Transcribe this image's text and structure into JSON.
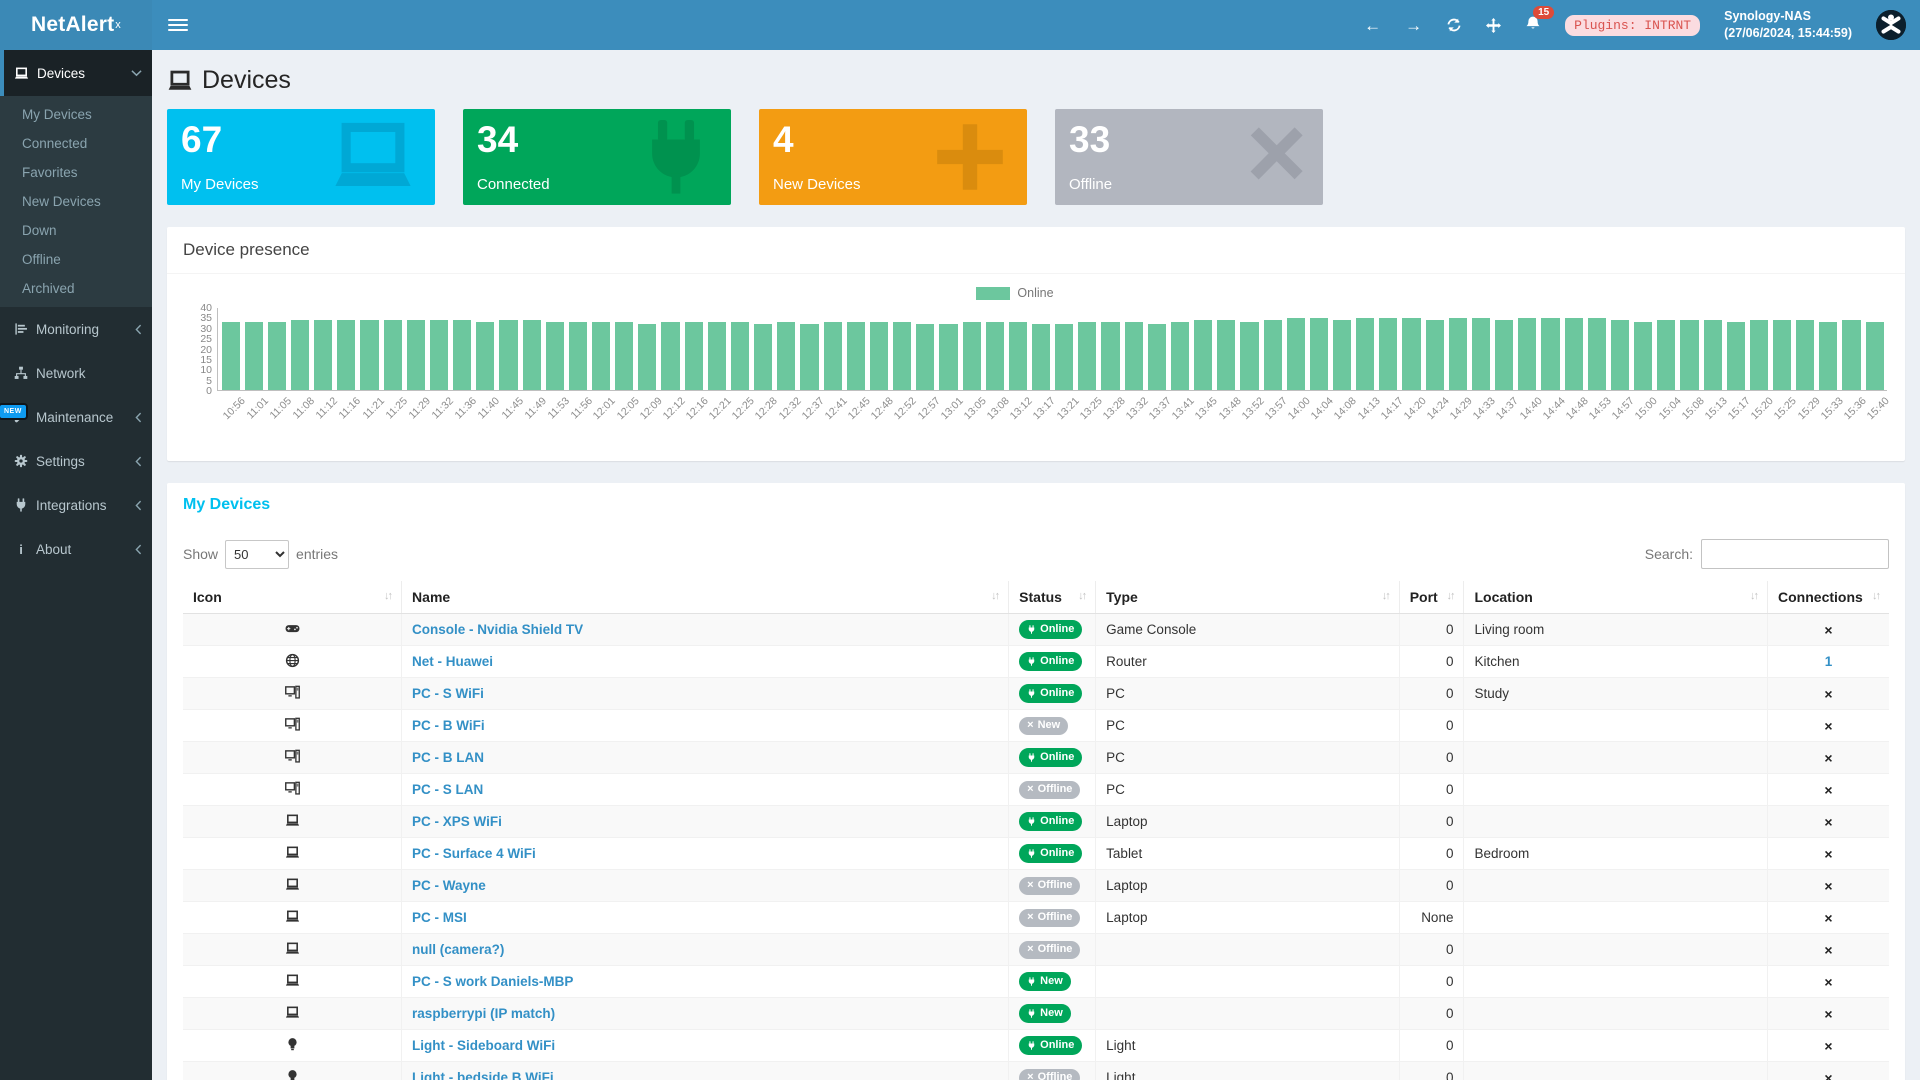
{
  "logo": {
    "text": "NetAlert",
    "sup": "x"
  },
  "navbar": {
    "notification_count": "15",
    "plugins_badge": "Plugins: INTRNT",
    "host": "Synology-NAS",
    "timestamp": "(27/06/2024, 15:44:59)"
  },
  "sidebar": {
    "devices": {
      "label": "Devices"
    },
    "devices_submenu": [
      {
        "label": "My Devices"
      },
      {
        "label": "Connected"
      },
      {
        "label": "Favorites"
      },
      {
        "label": "New Devices"
      },
      {
        "label": "Down"
      },
      {
        "label": "Offline"
      },
      {
        "label": "Archived"
      }
    ],
    "items": [
      {
        "label": "Monitoring"
      },
      {
        "label": "Network"
      },
      {
        "label": "Maintenance",
        "badge": "NEW"
      },
      {
        "label": "Settings"
      },
      {
        "label": "Integrations"
      },
      {
        "label": "About"
      }
    ]
  },
  "page": {
    "title": "Devices",
    "info_boxes": [
      {
        "value": "67",
        "label": "My Devices",
        "color": "#00c0ef",
        "icon": "laptop-icon"
      },
      {
        "value": "34",
        "label": "Connected",
        "color": "#00a65a",
        "icon": "plug-icon"
      },
      {
        "value": "4",
        "label": "New Devices",
        "color": "#f39c12",
        "icon": "plus-icon"
      },
      {
        "value": "33",
        "label": "Offline",
        "color": "#b2b6bf",
        "icon": "x-icon"
      }
    ]
  },
  "chart_data": {
    "type": "bar",
    "title": "Device presence",
    "legend": [
      "Online"
    ],
    "series_color": "#6cc79e",
    "ylim": [
      0,
      40
    ],
    "yticks": [
      40,
      35,
      30,
      25,
      20,
      15,
      10,
      5,
      0
    ],
    "x": [
      "10:56",
      "11:01",
      "11:05",
      "11:08",
      "11:12",
      "11:16",
      "11:21",
      "11:25",
      "11:29",
      "11:32",
      "11:36",
      "11:40",
      "11:45",
      "11:49",
      "11:53",
      "11:56",
      "12:01",
      "12:05",
      "12:09",
      "12:12",
      "12:16",
      "12:21",
      "12:25",
      "12:28",
      "12:32",
      "12:37",
      "12:41",
      "12:45",
      "12:48",
      "12:52",
      "12:57",
      "13:01",
      "13:05",
      "13:08",
      "13:12",
      "13:17",
      "13:21",
      "13:25",
      "13:28",
      "13:32",
      "13:37",
      "13:41",
      "13:45",
      "13:48",
      "13:52",
      "13:57",
      "14:00",
      "14:04",
      "14:08",
      "14:13",
      "14:17",
      "14:20",
      "14:24",
      "14:29",
      "14:33",
      "14:37",
      "14:40",
      "14:44",
      "14:48",
      "14:53",
      "14:57",
      "15:00",
      "15:04",
      "15:08",
      "15:13",
      "15:17",
      "15:20",
      "15:25",
      "15:29",
      "15:33",
      "15:36",
      "15:40"
    ],
    "values": [
      33,
      33,
      33,
      34,
      34,
      34,
      34,
      34,
      34,
      34,
      34,
      33,
      34,
      34,
      33,
      33,
      33,
      33,
      32,
      33,
      33,
      33,
      33,
      32,
      33,
      32,
      33,
      33,
      33,
      33,
      32,
      32,
      33,
      33,
      33,
      32,
      32,
      33,
      33,
      33,
      32,
      33,
      34,
      34,
      33,
      34,
      35,
      35,
      34,
      35,
      35,
      35,
      34,
      35,
      35,
      34,
      35,
      35,
      35,
      35,
      34,
      33,
      34,
      34,
      34,
      33,
      34,
      34,
      34,
      33,
      34,
      33
    ]
  },
  "table": {
    "title": "My Devices",
    "show_label": "Show",
    "page_length": "50",
    "entries_label": "entries",
    "search_label": "Search:",
    "headers": [
      "Icon",
      "Name",
      "Status",
      "Type",
      "Port",
      "Location",
      "Connections"
    ],
    "rows": [
      {
        "icon": "gamepad-icon",
        "name": "Console - Nvidia Shield TV",
        "status": {
          "label": "Online",
          "variant": "green",
          "icon": "plug"
        },
        "type": "Game Console",
        "port": "0",
        "location": "Living room",
        "connections": {
          "kind": "x"
        }
      },
      {
        "icon": "globe-icon",
        "name": "Net - Huawei",
        "status": {
          "label": "Online",
          "variant": "green",
          "icon": "plug"
        },
        "type": "Router",
        "port": "0",
        "location": "Kitchen",
        "connections": {
          "kind": "link",
          "value": "1"
        }
      },
      {
        "icon": "desktop-icon",
        "name": "PC - S WiFi",
        "status": {
          "label": "Online",
          "variant": "green",
          "icon": "plug"
        },
        "type": "PC",
        "port": "0",
        "location": "Study",
        "connections": {
          "kind": "x"
        }
      },
      {
        "icon": "desktop-icon",
        "name": "PC - B WiFi",
        "status": {
          "label": "New",
          "variant": "gray",
          "icon": "x"
        },
        "type": "PC",
        "port": "0",
        "location": "",
        "connections": {
          "kind": "x"
        }
      },
      {
        "icon": "desktop-icon",
        "name": "PC - B LAN",
        "status": {
          "label": "Online",
          "variant": "green",
          "icon": "plug"
        },
        "type": "PC",
        "port": "0",
        "location": "",
        "connections": {
          "kind": "x"
        }
      },
      {
        "icon": "desktop-icon",
        "name": "PC - S LAN",
        "status": {
          "label": "Offline",
          "variant": "gray",
          "icon": "x"
        },
        "type": "PC",
        "port": "0",
        "location": "",
        "connections": {
          "kind": "x"
        }
      },
      {
        "icon": "laptop-icon",
        "name": "PC - XPS WiFi",
        "status": {
          "label": "Online",
          "variant": "green",
          "icon": "plug"
        },
        "type": "Laptop",
        "port": "0",
        "location": "",
        "connections": {
          "kind": "x"
        }
      },
      {
        "icon": "laptop-icon",
        "name": "PC - Surface 4 WiFi",
        "status": {
          "label": "Online",
          "variant": "green",
          "icon": "plug"
        },
        "type": "Tablet",
        "port": "0",
        "location": "Bedroom",
        "connections": {
          "kind": "x"
        }
      },
      {
        "icon": "laptop-icon",
        "name": "PC - Wayne",
        "status": {
          "label": "Offline",
          "variant": "gray",
          "icon": "x"
        },
        "type": "Laptop",
        "port": "0",
        "location": "",
        "connections": {
          "kind": "x"
        }
      },
      {
        "icon": "laptop-icon",
        "name": "PC - MSI",
        "status": {
          "label": "Offline",
          "variant": "gray",
          "icon": "x"
        },
        "type": "Laptop",
        "port": "None",
        "location": "",
        "connections": {
          "kind": "x"
        }
      },
      {
        "icon": "laptop-icon",
        "name": "null (camera?)",
        "status": {
          "label": "Offline",
          "variant": "gray",
          "icon": "x"
        },
        "type": "",
        "port": "0",
        "location": "",
        "connections": {
          "kind": "x"
        }
      },
      {
        "icon": "laptop-icon",
        "name": "PC - S work Daniels-MBP",
        "status": {
          "label": "New",
          "variant": "green",
          "icon": "plug"
        },
        "type": "",
        "port": "0",
        "location": "",
        "connections": {
          "kind": "x"
        }
      },
      {
        "icon": "laptop-icon",
        "name": "raspberrypi (IP match)",
        "status": {
          "label": "New",
          "variant": "green",
          "icon": "plug"
        },
        "type": "",
        "port": "0",
        "location": "",
        "connections": {
          "kind": "x"
        }
      },
      {
        "icon": "lightbulb-icon",
        "name": "Light - Sideboard WiFi",
        "status": {
          "label": "Online",
          "variant": "green",
          "icon": "plug"
        },
        "type": "Light",
        "port": "0",
        "location": "",
        "connections": {
          "kind": "x"
        }
      },
      {
        "icon": "lightbulb-icon",
        "name": "Light - bedside B WiFi",
        "status": {
          "label": "Offline",
          "variant": "gray",
          "icon": "x"
        },
        "type": "Light",
        "port": "0",
        "location": "",
        "connections": {
          "kind": "x"
        }
      }
    ]
  }
}
